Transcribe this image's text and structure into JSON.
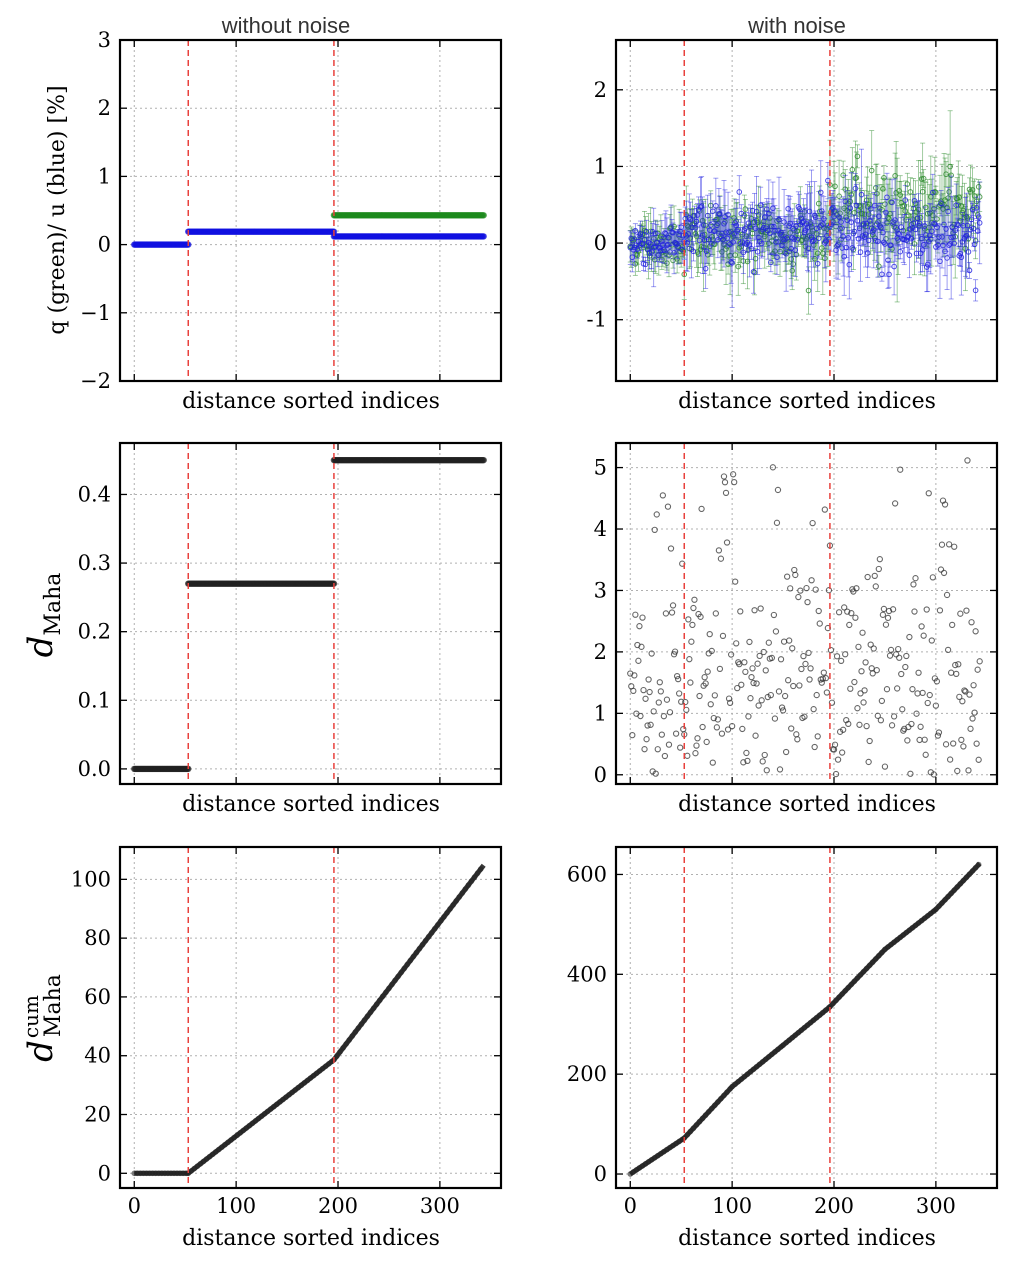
{
  "chart_data": [
    {
      "id": "q_u_no_noise",
      "type": "scatter",
      "title": "without noise",
      "xlabel": "distance sorted indices",
      "ylabel": "q (green)/ u (blue) [%]",
      "xlim": [
        -14,
        360
      ],
      "ylim": [
        -2,
        3
      ],
      "xticks": [
        0,
        100,
        200,
        300
      ],
      "show_xtick_labels": false,
      "yticks": [
        -2,
        -1,
        0,
        1,
        2,
        3
      ],
      "ytick_labels": [
        "−2",
        "−1",
        "0",
        "1",
        "2",
        "3"
      ],
      "vlines": [
        53,
        196
      ],
      "series": [
        {
          "name": "q",
          "color": "#1e8a1e",
          "segments": [
            {
              "x0": 196,
              "x1": 343,
              "y": 0.43
            }
          ]
        },
        {
          "name": "u",
          "color": "#1010e0",
          "segments": [
            {
              "x0": 0,
              "x1": 53,
              "y": 0.0
            },
            {
              "x0": 53,
              "x1": 196,
              "y": 0.19
            },
            {
              "x0": 196,
              "x1": 343,
              "y": 0.12
            }
          ]
        }
      ]
    },
    {
      "id": "q_u_noise",
      "type": "scatter",
      "title": "with noise",
      "xlabel": "distance sorted indices",
      "ylabel": "",
      "xlim": [
        -14,
        360
      ],
      "ylim": [
        -1.8,
        2.65
      ],
      "xticks": [
        0,
        100,
        200,
        300
      ],
      "show_xtick_labels": false,
      "yticks": [
        -1,
        0,
        1,
        2
      ],
      "ytick_labels": [
        "-1",
        "0",
        "1",
        "2"
      ],
      "vlines": [
        53,
        196
      ],
      "noise_sigma": 0.22,
      "series": [
        {
          "name": "q",
          "color": "#2a8a2a",
          "segments": [
            {
              "x0": 0,
              "x1": 53,
              "y": 0.0
            },
            {
              "x0": 53,
              "x1": 196,
              "y": 0.07
            },
            {
              "x0": 196,
              "x1": 343,
              "y": 0.43
            }
          ]
        },
        {
          "name": "u",
          "color": "#2020e0",
          "segments": [
            {
              "x0": 0,
              "x1": 53,
              "y": 0.0
            },
            {
              "x0": 53,
              "x1": 196,
              "y": 0.19
            },
            {
              "x0": 196,
              "x1": 343,
              "y": 0.12
            }
          ]
        }
      ]
    },
    {
      "id": "dmaha_no_noise",
      "type": "scatter",
      "title": "",
      "xlabel": "distance sorted indices",
      "ylabel": "d_Maha",
      "xlim": [
        -14,
        360
      ],
      "ylim": [
        -0.022,
        0.475
      ],
      "xticks": [
        0,
        100,
        200,
        300
      ],
      "show_xtick_labels": false,
      "yticks": [
        0.0,
        0.1,
        0.2,
        0.3,
        0.4
      ],
      "ytick_labels": [
        "0.0",
        "0.1",
        "0.2",
        "0.3",
        "0.4"
      ],
      "vlines": [
        53,
        196
      ],
      "series": [
        {
          "name": "d_Maha",
          "color": "#222222",
          "segments": [
            {
              "x0": 0,
              "x1": 53,
              "y": 0.0
            },
            {
              "x0": 53,
              "x1": 196,
              "y": 0.27
            },
            {
              "x0": 196,
              "x1": 343,
              "y": 0.45
            }
          ]
        }
      ]
    },
    {
      "id": "dmaha_noise",
      "type": "scatter",
      "title": "",
      "xlabel": "distance sorted indices",
      "ylabel": "",
      "xlim": [
        -14,
        360
      ],
      "ylim": [
        -0.15,
        5.4
      ],
      "xticks": [
        0,
        100,
        200,
        300
      ],
      "show_xtick_labels": false,
      "yticks": [
        0,
        1,
        2,
        3,
        4,
        5
      ],
      "ytick_labels": [
        "0",
        "1",
        "2",
        "3",
        "4",
        "5"
      ],
      "vlines": [
        53,
        196
      ],
      "n_points": 344,
      "series": [
        {
          "name": "d_Maha",
          "color": "#333333"
        }
      ]
    },
    {
      "id": "dmaha_cum_no_noise",
      "type": "line",
      "title": "",
      "xlabel": "distance sorted indices",
      "ylabel": "d_Maha^cum",
      "xlim": [
        -14,
        360
      ],
      "ylim": [
        -5,
        111
      ],
      "xticks": [
        0,
        100,
        200,
        300
      ],
      "xtick_labels": [
        "0",
        "100",
        "200",
        "300"
      ],
      "show_xtick_labels": true,
      "yticks": [
        0,
        20,
        40,
        60,
        80,
        100
      ],
      "ytick_labels": [
        "0",
        "20",
        "40",
        "60",
        "80",
        "100"
      ],
      "vlines": [
        53,
        196
      ],
      "series": [
        {
          "name": "d_Maha_cum",
          "color": "#222222",
          "points": [
            [
              0,
              0
            ],
            [
              53,
              0
            ],
            [
              196,
              38.6
            ],
            [
              343,
              104.8
            ]
          ]
        }
      ]
    },
    {
      "id": "dmaha_cum_noise",
      "type": "line",
      "title": "",
      "xlabel": "distance sorted indices",
      "ylabel": "",
      "xlim": [
        -14,
        360
      ],
      "ylim": [
        -28,
        655
      ],
      "xticks": [
        0,
        100,
        200,
        300
      ],
      "xtick_labels": [
        "0",
        "100",
        "200",
        "300"
      ],
      "show_xtick_labels": true,
      "yticks": [
        0,
        200,
        400,
        600
      ],
      "ytick_labels": [
        "0",
        "200",
        "400",
        "600"
      ],
      "vlines": [
        53,
        196
      ],
      "series": [
        {
          "name": "d_Maha_cum",
          "color": "#222222",
          "points": [
            [
              0,
              0
            ],
            [
              53,
              72
            ],
            [
              100,
              175
            ],
            [
              150,
              258
            ],
            [
              196,
              335
            ],
            [
              250,
              450
            ],
            [
              300,
              530
            ],
            [
              343,
              622
            ]
          ]
        }
      ]
    }
  ]
}
